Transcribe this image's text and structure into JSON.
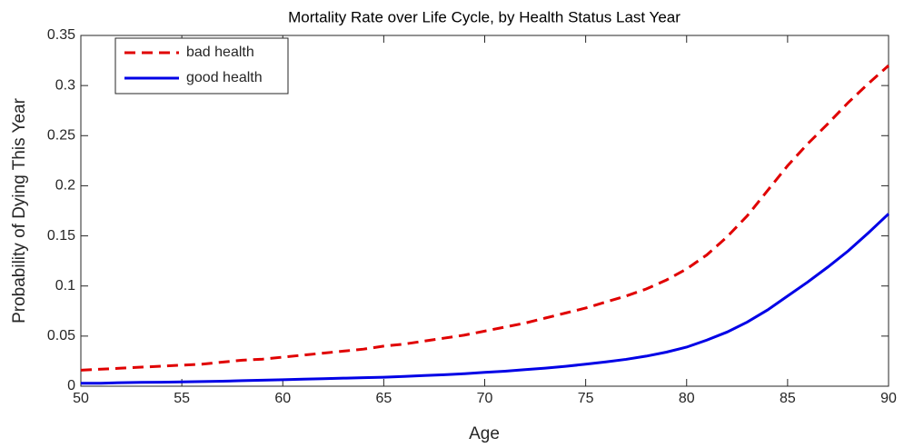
{
  "chart_data": {
    "type": "line",
    "title": "Mortality Rate over Life Cycle, by Health Status Last Year",
    "x_label": "Age",
    "y_label": "Probability of Dying This Year",
    "x": [
      50,
      51,
      52,
      53,
      54,
      55,
      56,
      57,
      58,
      59,
      60,
      61,
      62,
      63,
      64,
      65,
      66,
      67,
      68,
      69,
      70,
      71,
      72,
      73,
      74,
      75,
      76,
      77,
      78,
      79,
      80,
      81,
      82,
      83,
      84,
      85,
      86,
      87,
      88,
      89,
      90
    ],
    "series": [
      {
        "name": "bad health",
        "color": "#e00000",
        "style": "dashed",
        "values": [
          0.016,
          0.017,
          0.018,
          0.019,
          0.02,
          0.021,
          0.022,
          0.024,
          0.026,
          0.027,
          0.029,
          0.031,
          0.033,
          0.035,
          0.037,
          0.04,
          0.042,
          0.045,
          0.048,
          0.051,
          0.055,
          0.059,
          0.063,
          0.068,
          0.073,
          0.078,
          0.084,
          0.09,
          0.097,
          0.106,
          0.117,
          0.131,
          0.149,
          0.17,
          0.195,
          0.22,
          0.242,
          0.262,
          0.283,
          0.302,
          0.32
        ]
      },
      {
        "name": "good health",
        "color": "#0000e6",
        "style": "solid",
        "values": [
          0.003,
          0.003,
          0.0035,
          0.0038,
          0.004,
          0.0043,
          0.0047,
          0.005,
          0.0055,
          0.006,
          0.0065,
          0.007,
          0.0075,
          0.008,
          0.0085,
          0.009,
          0.0098,
          0.0106,
          0.0115,
          0.0125,
          0.0138,
          0.015,
          0.0165,
          0.018,
          0.0198,
          0.022,
          0.0243,
          0.0268,
          0.03,
          0.034,
          0.039,
          0.046,
          0.054,
          0.064,
          0.076,
          0.09,
          0.104,
          0.119,
          0.135,
          0.153,
          0.172
        ]
      }
    ],
    "xlim": [
      50,
      90
    ],
    "xticks": [
      50,
      55,
      60,
      65,
      70,
      75,
      80,
      85,
      90
    ],
    "ylim": [
      0,
      0.35
    ],
    "yticks": [
      0,
      0.05,
      0.1,
      0.15,
      0.2,
      0.25,
      0.3,
      0.35
    ],
    "grid": false,
    "legend": "northwest"
  }
}
